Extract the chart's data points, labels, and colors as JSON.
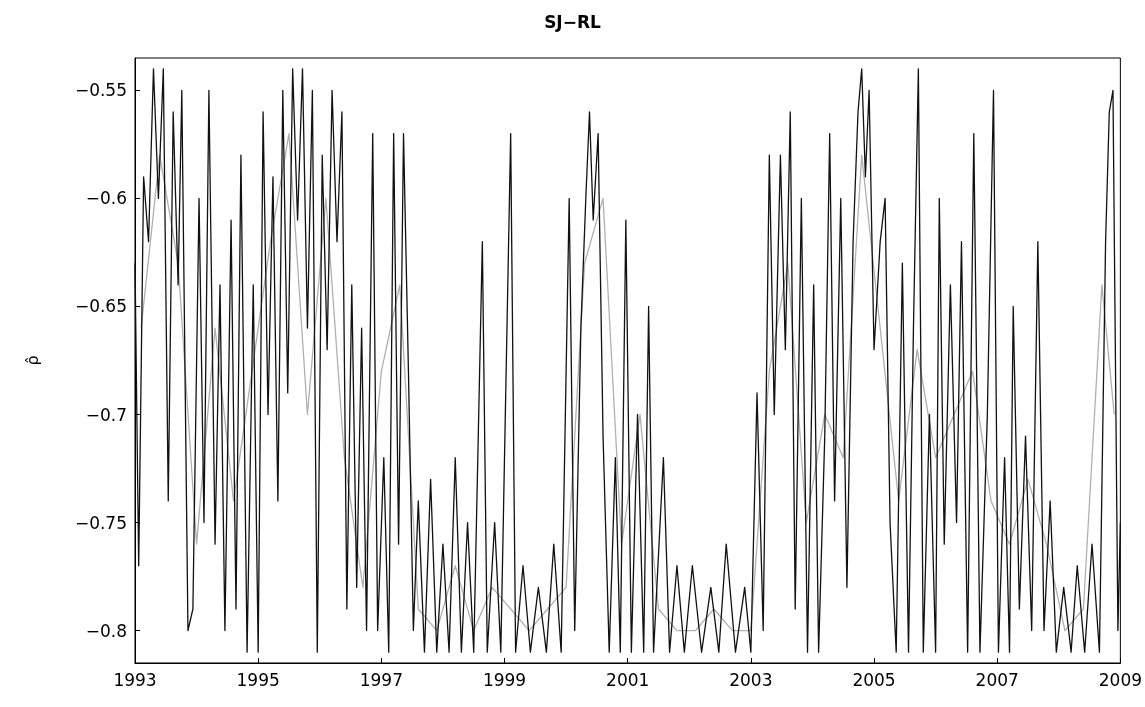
{
  "chart_data": {
    "type": "line",
    "title": "SJ−RL",
    "ylabel": "ρ̂",
    "xlim": [
      1993,
      2009
    ],
    "xticks": [
      1993,
      1995,
      1997,
      1999,
      2001,
      2003,
      2005,
      2007,
      2009
    ],
    "ylim": [
      -0.815,
      -0.535
    ],
    "yticks": [
      -0.8,
      -0.75,
      -0.7,
      -0.65,
      -0.6,
      -0.55
    ],
    "grid": false,
    "marker": "none",
    "line_style": "solid",
    "series": [
      {
        "color": "#b0b0b0",
        "x": [
          1993.1,
          1993.4,
          1993.7,
          1994.0,
          1994.3,
          1994.6,
          1994.9,
          1995.2,
          1995.5,
          1995.8,
          1996.1,
          1996.4,
          1996.7,
          1997.0,
          1997.3,
          1997.6,
          1997.9,
          1998.2,
          1998.5,
          1998.8,
          1999.1,
          1999.4,
          1999.7,
          2000.0,
          2000.3,
          2000.6,
          2000.9,
          2001.2,
          2001.5,
          2001.8,
          2002.1,
          2002.4,
          2002.7,
          2003.0,
          2003.3,
          2003.6,
          2003.9,
          2004.2,
          2004.5,
          2004.8,
          2005.1,
          2005.4,
          2005.7,
          2006.0,
          2006.3,
          2006.6,
          2006.9,
          2007.2,
          2007.5,
          2007.8,
          2008.1,
          2008.4,
          2008.7,
          2008.9
        ],
        "values": [
          -0.66,
          -0.58,
          -0.63,
          -0.76,
          -0.66,
          -0.74,
          -0.68,
          -0.62,
          -0.57,
          -0.7,
          -0.6,
          -0.72,
          -0.78,
          -0.68,
          -0.64,
          -0.79,
          -0.8,
          -0.77,
          -0.8,
          -0.78,
          -0.79,
          -0.8,
          -0.79,
          -0.78,
          -0.63,
          -0.6,
          -0.76,
          -0.7,
          -0.79,
          -0.8,
          -0.8,
          -0.79,
          -0.8,
          -0.8,
          -0.68,
          -0.63,
          -0.75,
          -0.7,
          -0.72,
          -0.58,
          -0.66,
          -0.74,
          -0.67,
          -0.72,
          -0.7,
          -0.68,
          -0.74,
          -0.76,
          -0.73,
          -0.76,
          -0.8,
          -0.79,
          -0.64,
          -0.7
        ]
      },
      {
        "color": "#111111",
        "x": [
          1993.0,
          1993.06,
          1993.14,
          1993.22,
          1993.3,
          1993.38,
          1993.46,
          1993.54,
          1993.62,
          1993.7,
          1993.76,
          1993.86,
          1993.94,
          1994.04,
          1994.12,
          1994.2,
          1994.3,
          1994.38,
          1994.46,
          1994.56,
          1994.64,
          1994.72,
          1994.82,
          1994.92,
          1995.0,
          1995.08,
          1995.16,
          1995.24,
          1995.32,
          1995.4,
          1995.48,
          1995.56,
          1995.64,
          1995.72,
          1995.8,
          1995.88,
          1995.96,
          1996.04,
          1996.12,
          1996.2,
          1996.28,
          1996.36,
          1996.44,
          1996.52,
          1996.6,
          1996.68,
          1996.76,
          1996.86,
          1996.94,
          1997.04,
          1997.12,
          1997.2,
          1997.28,
          1997.36,
          1997.44,
          1997.52,
          1997.6,
          1997.7,
          1997.8,
          1997.9,
          1998.0,
          1998.1,
          1998.2,
          1998.3,
          1998.4,
          1998.5,
          1998.64,
          1998.72,
          1998.84,
          1998.94,
          1999.1,
          1999.18,
          1999.3,
          1999.42,
          1999.55,
          1999.68,
          1999.8,
          1999.92,
          2000.05,
          2000.14,
          2000.24,
          2000.32,
          2000.38,
          2000.44,
          2000.52,
          2000.6,
          2000.7,
          2000.8,
          2000.88,
          2000.97,
          2001.06,
          2001.16,
          2001.26,
          2001.34,
          2001.42,
          2001.58,
          2001.68,
          2001.8,
          2001.92,
          2002.05,
          2002.2,
          2002.35,
          2002.48,
          2002.6,
          2002.75,
          2002.9,
          2003.0,
          2003.1,
          2003.2,
          2003.3,
          2003.38,
          2003.48,
          2003.56,
          2003.64,
          2003.72,
          2003.82,
          2003.92,
          2004.02,
          2004.1,
          2004.2,
          2004.28,
          2004.36,
          2004.46,
          2004.56,
          2004.66,
          2004.74,
          2004.8,
          2004.86,
          2004.92,
          2005.0,
          2005.1,
          2005.18,
          2005.26,
          2005.36,
          2005.46,
          2005.56,
          2005.64,
          2005.72,
          2005.8,
          2005.9,
          2006.0,
          2006.06,
          2006.14,
          2006.24,
          2006.34,
          2006.42,
          2006.52,
          2006.62,
          2006.72,
          2006.84,
          2006.94,
          2007.02,
          2007.12,
          2007.2,
          2007.26,
          2007.36,
          2007.46,
          2007.56,
          2007.66,
          2007.76,
          2007.86,
          2007.96,
          2008.08,
          2008.2,
          2008.3,
          2008.42,
          2008.54,
          2008.66,
          2008.76,
          2008.82,
          2008.88,
          2008.96,
          2009.0
        ],
        "values": [
          -0.63,
          -0.77,
          -0.59,
          -0.62,
          -0.54,
          -0.6,
          -0.54,
          -0.74,
          -0.56,
          -0.64,
          -0.55,
          -0.8,
          -0.79,
          -0.6,
          -0.75,
          -0.55,
          -0.76,
          -0.64,
          -0.8,
          -0.61,
          -0.79,
          -0.58,
          -0.81,
          -0.64,
          -0.81,
          -0.56,
          -0.7,
          -0.59,
          -0.74,
          -0.55,
          -0.69,
          -0.54,
          -0.61,
          -0.54,
          -0.66,
          -0.55,
          -0.81,
          -0.58,
          -0.67,
          -0.55,
          -0.62,
          -0.56,
          -0.79,
          -0.64,
          -0.78,
          -0.66,
          -0.8,
          -0.57,
          -0.8,
          -0.72,
          -0.81,
          -0.57,
          -0.76,
          -0.57,
          -0.68,
          -0.8,
          -0.74,
          -0.81,
          -0.73,
          -0.81,
          -0.76,
          -0.81,
          -0.72,
          -0.81,
          -0.75,
          -0.81,
          -0.62,
          -0.81,
          -0.75,
          -0.81,
          -0.57,
          -0.81,
          -0.77,
          -0.81,
          -0.78,
          -0.81,
          -0.76,
          -0.81,
          -0.6,
          -0.8,
          -0.66,
          -0.6,
          -0.56,
          -0.61,
          -0.57,
          -0.71,
          -0.81,
          -0.72,
          -0.81,
          -0.61,
          -0.81,
          -0.7,
          -0.81,
          -0.65,
          -0.81,
          -0.72,
          -0.81,
          -0.77,
          -0.81,
          -0.77,
          -0.81,
          -0.78,
          -0.81,
          -0.76,
          -0.81,
          -0.78,
          -0.81,
          -0.69,
          -0.8,
          -0.58,
          -0.7,
          -0.58,
          -0.67,
          -0.56,
          -0.79,
          -0.6,
          -0.81,
          -0.64,
          -0.81,
          -0.71,
          -0.57,
          -0.74,
          -0.6,
          -0.78,
          -0.62,
          -0.56,
          -0.54,
          -0.59,
          -0.55,
          -0.67,
          -0.62,
          -0.6,
          -0.75,
          -0.81,
          -0.63,
          -0.81,
          -0.66,
          -0.54,
          -0.81,
          -0.7,
          -0.81,
          -0.6,
          -0.76,
          -0.64,
          -0.75,
          -0.62,
          -0.81,
          -0.57,
          -0.81,
          -0.7,
          -0.55,
          -0.81,
          -0.72,
          -0.81,
          -0.65,
          -0.79,
          -0.71,
          -0.8,
          -0.62,
          -0.8,
          -0.74,
          -0.81,
          -0.78,
          -0.81,
          -0.77,
          -0.81,
          -0.76,
          -0.81,
          -0.62,
          -0.56,
          -0.55,
          -0.8,
          -0.75
        ]
      }
    ]
  }
}
